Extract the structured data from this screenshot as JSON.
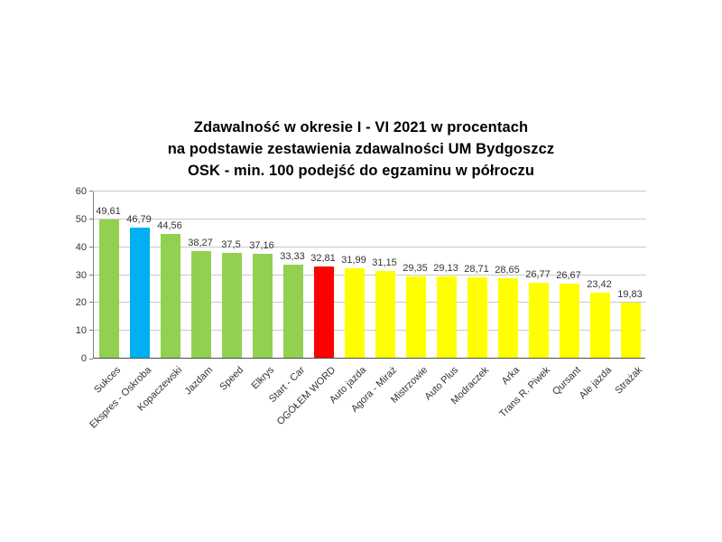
{
  "page": {
    "background": "#ffffff"
  },
  "chart_data": {
    "type": "bar",
    "title_lines": [
      "Zdawalność w okresie I - VI 2021 w procentach",
      "na podstawie zestawienia zdawalności UM Bydgoszcz",
      "OSK - min. 100 podejść do egzaminu w półroczu"
    ],
    "categories": [
      "Sukces",
      "Ekspres - Oskroba",
      "Kopaczewski",
      "Jazdam",
      "Speed",
      "Elkrys",
      "Start - Car",
      "OGÓŁEM WORD",
      "Auto jazda",
      "Agora - Miraż",
      "Mistrzowie",
      "Auto Plus",
      "Modraczek",
      "Arka",
      "Trans R. Piwek",
      "Qursant",
      "Ale jazda",
      "Strażak"
    ],
    "values": [
      49.61,
      46.79,
      44.56,
      38.27,
      37.5,
      37.16,
      33.33,
      32.81,
      31.99,
      31.15,
      29.35,
      29.13,
      28.71,
      28.65,
      26.77,
      26.67,
      23.42,
      19.83
    ],
    "value_labels": [
      "49,61",
      "46,79",
      "44,56",
      "38,27",
      "37,5",
      "37,16",
      "33,33",
      "32,81",
      "31,99",
      "31,15",
      "29,35",
      "29,13",
      "28,71",
      "28,65",
      "26,77",
      "26,67",
      "23,42",
      "19,83"
    ],
    "bar_colors": [
      "green",
      "blue",
      "green",
      "green",
      "green",
      "green",
      "green",
      "red",
      "yellow",
      "yellow",
      "yellow",
      "yellow",
      "yellow",
      "yellow",
      "yellow",
      "yellow",
      "yellow",
      "yellow"
    ],
    "palette": {
      "green": "#92D050",
      "blue": "#00B0F0",
      "red": "#FF0000",
      "yellow": "#FFFF00"
    },
    "xlabel": "",
    "ylabel": "",
    "ylim": [
      0,
      60
    ],
    "yticks": [
      0,
      10,
      20,
      30,
      40,
      50,
      60
    ],
    "grid": true,
    "legend": "none",
    "grid_color": "#c9c9c9",
    "axis_color": "#4d4d4d",
    "text_color": "#333333"
  }
}
